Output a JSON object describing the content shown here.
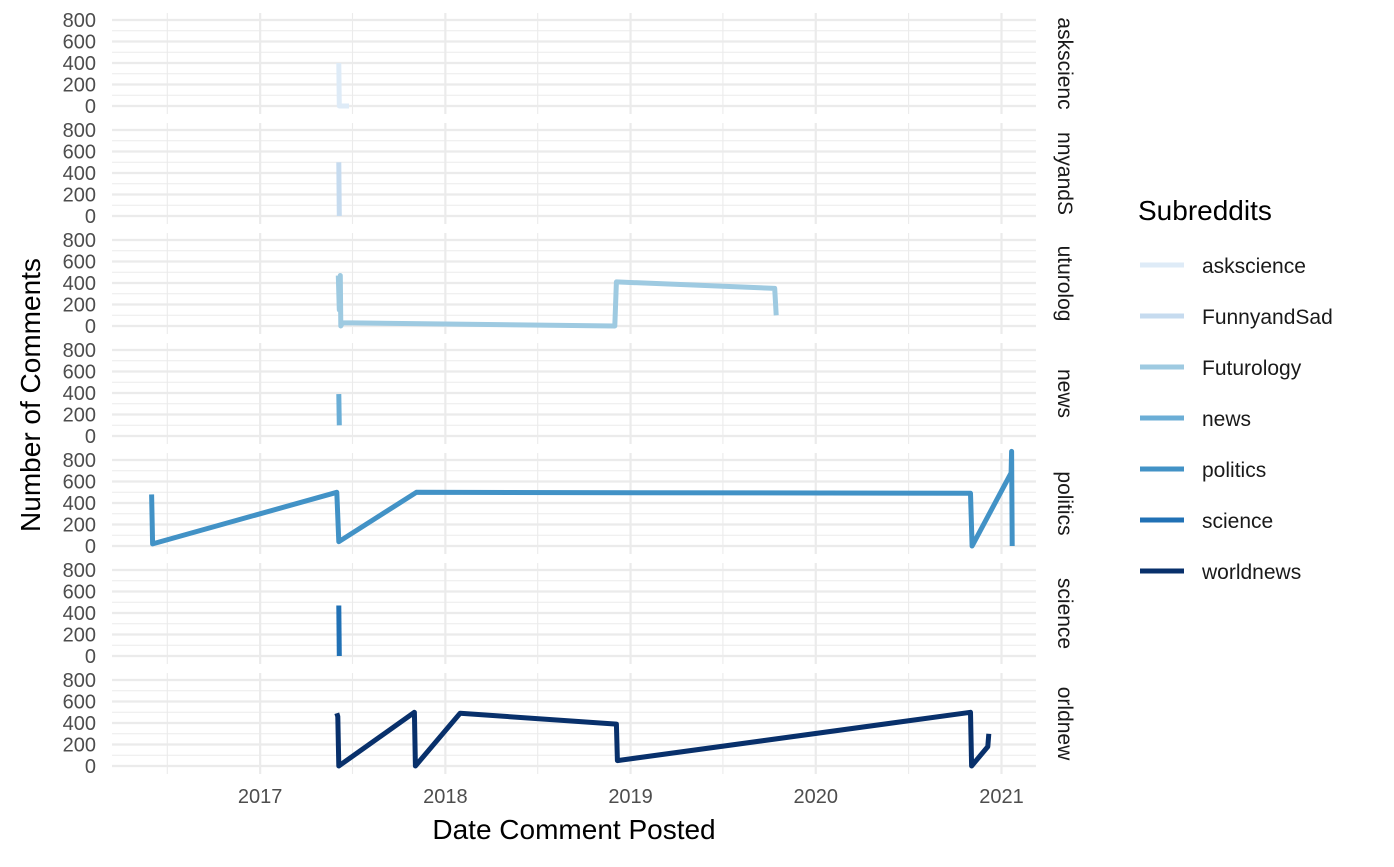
{
  "chart_data": {
    "type": "line",
    "facet": "rows",
    "xlabel": "Date Comment Posted",
    "ylabel": "Number of Comments",
    "x_ticks": [
      {
        "date": "2017-01-01",
        "label": "2017"
      },
      {
        "date": "2018-01-01",
        "label": "2018"
      },
      {
        "date": "2019-01-01",
        "label": "2019"
      },
      {
        "date": "2020-01-01",
        "label": "2020"
      },
      {
        "date": "2021-01-01",
        "label": "2021"
      }
    ],
    "x_minor_ticks": [
      "2016-07-02",
      "2017-07-02",
      "2018-07-02",
      "2019-07-02",
      "2020-07-02"
    ],
    "xlim": [
      "2016-03-15",
      "2021-03-10"
    ],
    "y_ticks": [
      0,
      200,
      400,
      600,
      800
    ],
    "ylim": [
      0,
      880
    ],
    "grid": true,
    "legend": {
      "title": "Subreddits",
      "position": "right"
    },
    "series": [
      {
        "name": "askscience",
        "strip": "askscienc",
        "color": "#deebf7",
        "points": [
          [
            "2017-06-05",
            400
          ],
          [
            "2017-06-06",
            0
          ],
          [
            "2017-06-25",
            0
          ]
        ]
      },
      {
        "name": "FunnyandSad",
        "strip": "nnyandS",
        "color": "#c6dbef",
        "points": [
          [
            "2017-06-05",
            500
          ],
          [
            "2017-06-06",
            0
          ]
        ]
      },
      {
        "name": "Futurology",
        "strip": "uturolog",
        "color": "#9ecae1",
        "points": [
          [
            "2017-06-04",
            470
          ],
          [
            "2017-06-06",
            150
          ],
          [
            "2017-06-08",
            470
          ],
          [
            "2017-06-09",
            0
          ],
          [
            "2017-06-12",
            30
          ],
          [
            "2018-12-01",
            0
          ],
          [
            "2018-12-04",
            410
          ],
          [
            "2019-10-12",
            350
          ],
          [
            "2019-10-15",
            100
          ]
        ]
      },
      {
        "name": "news",
        "strip": "news",
        "color": "#6baed6",
        "points": [
          [
            "2017-06-05",
            390
          ],
          [
            "2017-06-06",
            100
          ]
        ]
      },
      {
        "name": "politics",
        "strip": "politics",
        "color": "#4292c6",
        "points": [
          [
            "2016-06-01",
            480
          ],
          [
            "2016-06-03",
            20
          ],
          [
            "2017-06-01",
            500
          ],
          [
            "2017-06-05",
            40
          ],
          [
            "2017-11-05",
            500
          ],
          [
            "2020-11-01",
            490
          ],
          [
            "2020-11-04",
            0
          ],
          [
            "2021-01-20",
            680
          ],
          [
            "2021-01-21",
            880
          ],
          [
            "2021-01-22",
            0
          ]
        ]
      },
      {
        "name": "science",
        "strip": "science",
        "color": "#2171b5",
        "points": [
          [
            "2017-06-05",
            470
          ],
          [
            "2017-06-06",
            0
          ]
        ]
      },
      {
        "name": "worldnews",
        "strip": "orldnew",
        "color": "#08306b",
        "points": [
          [
            "2017-06-01",
            490
          ],
          [
            "2017-06-03",
            460
          ],
          [
            "2017-06-05",
            0
          ],
          [
            "2017-11-01",
            500
          ],
          [
            "2017-11-03",
            0
          ],
          [
            "2018-01-30",
            490
          ],
          [
            "2018-12-04",
            390
          ],
          [
            "2018-12-06",
            50
          ],
          [
            "2020-11-01",
            500
          ],
          [
            "2020-11-03",
            0
          ],
          [
            "2020-12-05",
            180
          ],
          [
            "2020-12-07",
            300
          ]
        ]
      }
    ]
  }
}
